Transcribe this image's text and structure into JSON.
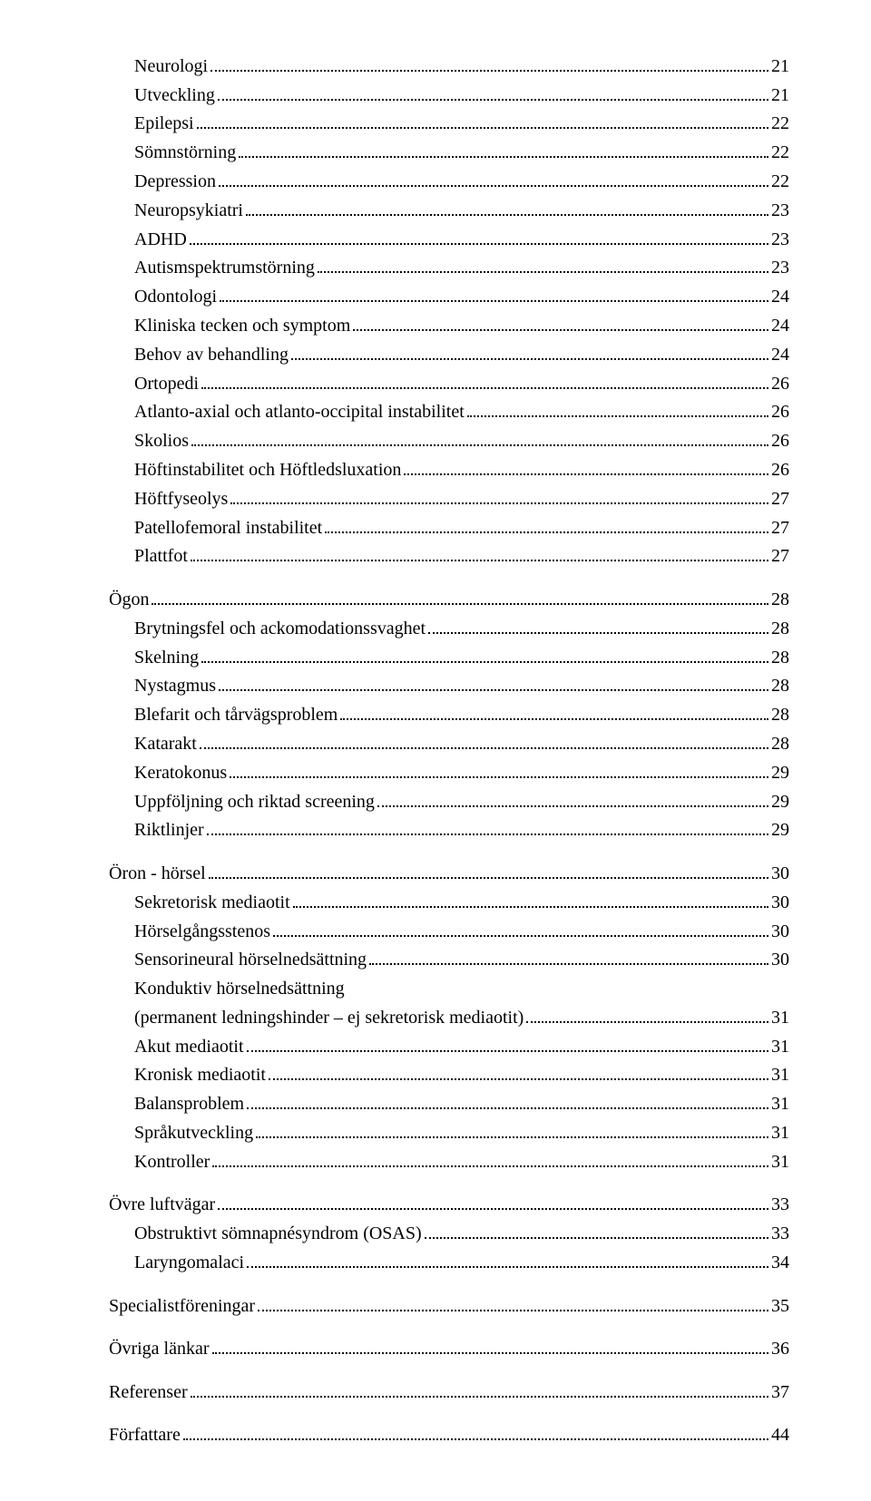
{
  "toc": {
    "entries": [
      {
        "label": "Neurologi",
        "page": "21",
        "level": 1
      },
      {
        "label": "Utveckling",
        "page": "21",
        "level": 1
      },
      {
        "label": "Epilepsi",
        "page": "22",
        "level": 1
      },
      {
        "label": "Sömnstörning",
        "page": "22",
        "level": 1
      },
      {
        "label": "Depression",
        "page": "22",
        "level": 1
      },
      {
        "label": "Neuropsykiatri",
        "page": "23",
        "level": 1
      },
      {
        "label": "ADHD",
        "page": "23",
        "level": 1
      },
      {
        "label": "Autismspektrumstörning",
        "page": "23",
        "level": 1
      },
      {
        "label": "Odontologi",
        "page": "24",
        "level": 1
      },
      {
        "label": "Kliniska tecken och symptom",
        "page": "24",
        "level": 1
      },
      {
        "label": "Behov av behandling",
        "page": "24",
        "level": 1
      },
      {
        "label": "Ortopedi",
        "page": "26",
        "level": 1
      },
      {
        "label": "Atlanto-axial och atlanto-occipital instabilitet",
        "page": "26",
        "level": 1
      },
      {
        "label": "Skolios",
        "page": "26",
        "level": 1
      },
      {
        "label": "Höftinstabilitet och Höftledsluxation",
        "page": "26",
        "level": 1
      },
      {
        "label": "Höftfyseolys",
        "page": "27",
        "level": 1
      },
      {
        "label": "Patellofemoral instabilitet",
        "page": "27",
        "level": 1
      },
      {
        "label": "Plattfot",
        "page": "27",
        "level": 1
      },
      {
        "gap": true
      },
      {
        "label": "Ögon",
        "page": "28",
        "level": 0
      },
      {
        "label": "Brytningsfel och ackomodationssvaghet",
        "page": "28",
        "level": 1
      },
      {
        "label": "Skelning",
        "page": "28",
        "level": 1
      },
      {
        "label": "Nystagmus",
        "page": "28",
        "level": 1
      },
      {
        "label": "Blefarit och tårvägsproblem",
        "page": "28",
        "level": 1
      },
      {
        "label": "Katarakt",
        "page": "28",
        "level": 1
      },
      {
        "label": "Keratokonus",
        "page": "29",
        "level": 1
      },
      {
        "label": "Uppföljning och riktad screening",
        "page": "29",
        "level": 1
      },
      {
        "label": "Riktlinjer",
        "page": "29",
        "level": 1
      },
      {
        "gap": true
      },
      {
        "label": "Öron - hörsel",
        "page": "30",
        "level": 0
      },
      {
        "label": "Sekretorisk mediaotit",
        "page": "30",
        "level": 1
      },
      {
        "label": "Hörselgångsstenos",
        "page": "30",
        "level": 1
      },
      {
        "label": "Sensorineural hörselnedsättning",
        "page": "30",
        "level": 1
      },
      {
        "label": "Konduktiv hörselnedsättning\n(permanent ledningshinder – ej sekretorisk mediaotit)",
        "page": "31",
        "level": 1,
        "multiline": true
      },
      {
        "label": "Akut mediaotit",
        "page": "31",
        "level": 1
      },
      {
        "label": "Kronisk mediaotit",
        "page": "31",
        "level": 1
      },
      {
        "label": "Balansproblem",
        "page": "31",
        "level": 1
      },
      {
        "label": "Språkutveckling",
        "page": "31",
        "level": 1
      },
      {
        "label": "Kontroller",
        "page": "31",
        "level": 1
      },
      {
        "gap": true
      },
      {
        "label": "Övre luftvägar",
        "page": "33",
        "level": 0
      },
      {
        "label": "Obstruktivt sömnapnésyndrom (OSAS)",
        "page": "33",
        "level": 1
      },
      {
        "label": "Laryngomalaci",
        "page": "34",
        "level": 1
      },
      {
        "gap": true
      },
      {
        "label": "Specialistföreningar",
        "page": "35",
        "level": 0
      },
      {
        "gap": true
      },
      {
        "label": "Övriga länkar",
        "page": "36",
        "level": 0
      },
      {
        "gap": true
      },
      {
        "label": "Referenser",
        "page": "37",
        "level": 0
      },
      {
        "gap": true
      },
      {
        "label": "Författare",
        "page": "44",
        "level": 0
      }
    ]
  }
}
